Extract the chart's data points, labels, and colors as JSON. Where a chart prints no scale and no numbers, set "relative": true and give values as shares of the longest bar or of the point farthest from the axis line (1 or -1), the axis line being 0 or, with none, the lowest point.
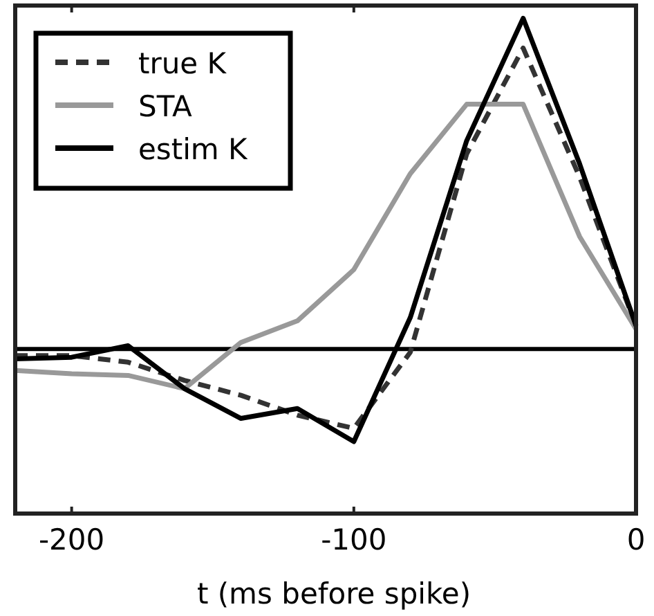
{
  "chart_data": {
    "type": "line",
    "relative": true,
    "xlabel": "t (ms before spike)",
    "x": [
      -220,
      -200,
      -180,
      -160,
      -140,
      -120,
      -100,
      -80,
      -60,
      -40,
      -20,
      0
    ],
    "xlim": [
      -220,
      0
    ],
    "xticks": [
      -200,
      -100,
      0
    ],
    "legend": "top left",
    "grid": false,
    "marker": "none",
    "ref_lines": [
      {
        "axis": "y",
        "value": 0,
        "color": "#000000"
      }
    ],
    "series": [
      {
        "name": "true K",
        "color": "#333333",
        "line_style": "dashed",
        "values": [
          -0.02,
          -0.02,
          -0.04,
          -0.095,
          -0.14,
          -0.2,
          -0.24,
          -0.01,
          0.59,
          0.91,
          0.52,
          0.07
        ]
      },
      {
        "name": "STA",
        "color": "#999999",
        "line_style": "solid",
        "values": [
          -0.065,
          -0.075,
          -0.08,
          -0.12,
          0.02,
          0.085,
          0.24,
          0.53,
          0.74,
          0.74,
          0.34,
          0.06
        ]
      },
      {
        "name": "estim K",
        "color": "#000000",
        "line_style": "solid",
        "values": [
          -0.03,
          -0.025,
          0.01,
          -0.12,
          -0.21,
          -0.18,
          -0.28,
          0.095,
          0.63,
          1,
          0.56,
          0.07
        ]
      }
    ]
  }
}
